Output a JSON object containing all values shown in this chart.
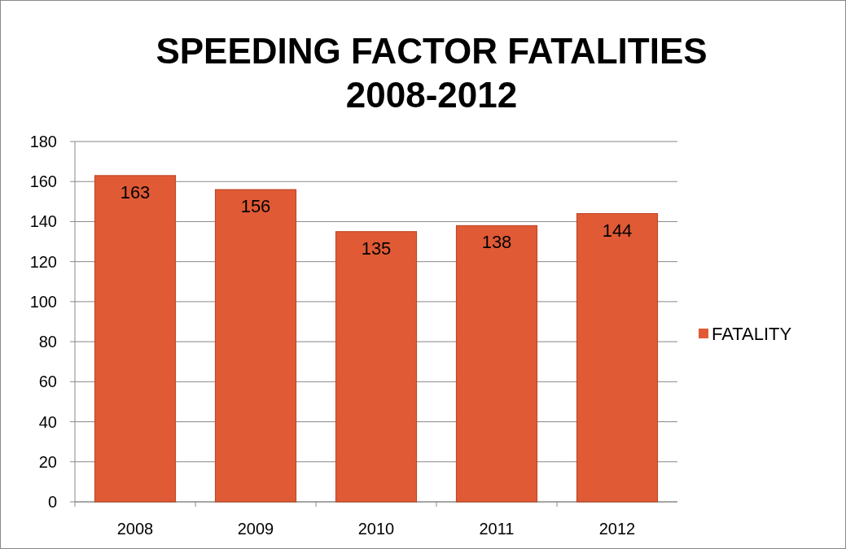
{
  "chart_data": {
    "type": "bar",
    "title": "SPEEDING FACTOR FATALITIES\n2008-2012",
    "categories": [
      "2008",
      "2009",
      "2010",
      "2011",
      "2012"
    ],
    "series": [
      {
        "name": "FATALITY",
        "color": "#e05a35",
        "values": [
          163,
          156,
          135,
          138,
          144
        ]
      }
    ],
    "ylim": [
      0,
      180
    ],
    "yticks": [
      0,
      20,
      40,
      60,
      80,
      100,
      120,
      140,
      160,
      180
    ],
    "grid": "y",
    "legend": "right",
    "data_labels": true
  }
}
